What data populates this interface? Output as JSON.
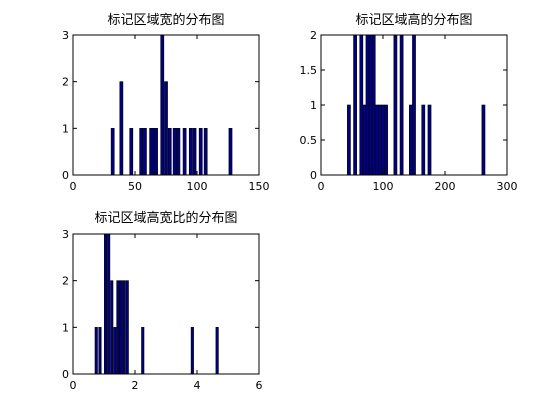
{
  "figure": {
    "background": "#ffffff",
    "bar_color": "#000080"
  },
  "chart_data": [
    {
      "type": "bar",
      "title": "标记区域宽的分布图",
      "xlabel": "",
      "ylabel": "",
      "xlim": [
        0,
        150
      ],
      "ylim": [
        0,
        3
      ],
      "xticks": [
        0,
        50,
        100,
        150
      ],
      "yticks": [
        0,
        1,
        2,
        3
      ],
      "bin_width": 2.5,
      "grid": false,
      "bars": [
        {
          "x": 32,
          "y": 1
        },
        {
          "x": 39,
          "y": 2
        },
        {
          "x": 47,
          "y": 1
        },
        {
          "x": 55,
          "y": 1
        },
        {
          "x": 58,
          "y": 1
        },
        {
          "x": 63,
          "y": 1
        },
        {
          "x": 65,
          "y": 1
        },
        {
          "x": 67,
          "y": 1
        },
        {
          "x": 72,
          "y": 3
        },
        {
          "x": 75,
          "y": 2
        },
        {
          "x": 78,
          "y": 1
        },
        {
          "x": 82,
          "y": 1
        },
        {
          "x": 85,
          "y": 1
        },
        {
          "x": 90,
          "y": 1
        },
        {
          "x": 95,
          "y": 1
        },
        {
          "x": 98,
          "y": 1
        },
        {
          "x": 103,
          "y": 1
        },
        {
          "x": 107,
          "y": 1
        },
        {
          "x": 127,
          "y": 1
        }
      ]
    },
    {
      "type": "bar",
      "title": "标记区域高的分布图",
      "xlabel": "",
      "ylabel": "",
      "xlim": [
        0,
        300
      ],
      "ylim": [
        0,
        2
      ],
      "xticks": [
        0,
        100,
        200,
        300
      ],
      "yticks": [
        0,
        0.5,
        1,
        1.5,
        2
      ],
      "bin_width": 5,
      "grid": false,
      "bars": [
        {
          "x": 45,
          "y": 1
        },
        {
          "x": 55,
          "y": 2
        },
        {
          "x": 65,
          "y": 2
        },
        {
          "x": 70,
          "y": 1
        },
        {
          "x": 75,
          "y": 2
        },
        {
          "x": 80,
          "y": 2
        },
        {
          "x": 85,
          "y": 2
        },
        {
          "x": 90,
          "y": 1
        },
        {
          "x": 95,
          "y": 1
        },
        {
          "x": 100,
          "y": 1
        },
        {
          "x": 105,
          "y": 1
        },
        {
          "x": 120,
          "y": 2
        },
        {
          "x": 130,
          "y": 2
        },
        {
          "x": 145,
          "y": 1
        },
        {
          "x": 150,
          "y": 2
        },
        {
          "x": 165,
          "y": 1
        },
        {
          "x": 175,
          "y": 1
        },
        {
          "x": 262,
          "y": 1
        }
      ]
    },
    {
      "type": "bar",
      "title": "标记区域高宽比的分布图",
      "xlabel": "",
      "ylabel": "",
      "xlim": [
        0,
        6
      ],
      "ylim": [
        0,
        3
      ],
      "xticks": [
        0,
        2,
        4,
        6
      ],
      "yticks": [
        0,
        1,
        2,
        3
      ],
      "bin_width": 0.08,
      "grid": false,
      "bars": [
        {
          "x": 0.75,
          "y": 1
        },
        {
          "x": 0.87,
          "y": 1
        },
        {
          "x": 1.05,
          "y": 3
        },
        {
          "x": 1.15,
          "y": 3
        },
        {
          "x": 1.25,
          "y": 2
        },
        {
          "x": 1.35,
          "y": 1
        },
        {
          "x": 1.45,
          "y": 2
        },
        {
          "x": 1.55,
          "y": 2
        },
        {
          "x": 1.65,
          "y": 2
        },
        {
          "x": 1.75,
          "y": 2
        },
        {
          "x": 2.25,
          "y": 1
        },
        {
          "x": 3.85,
          "y": 1
        },
        {
          "x": 4.65,
          "y": 1
        }
      ]
    }
  ]
}
